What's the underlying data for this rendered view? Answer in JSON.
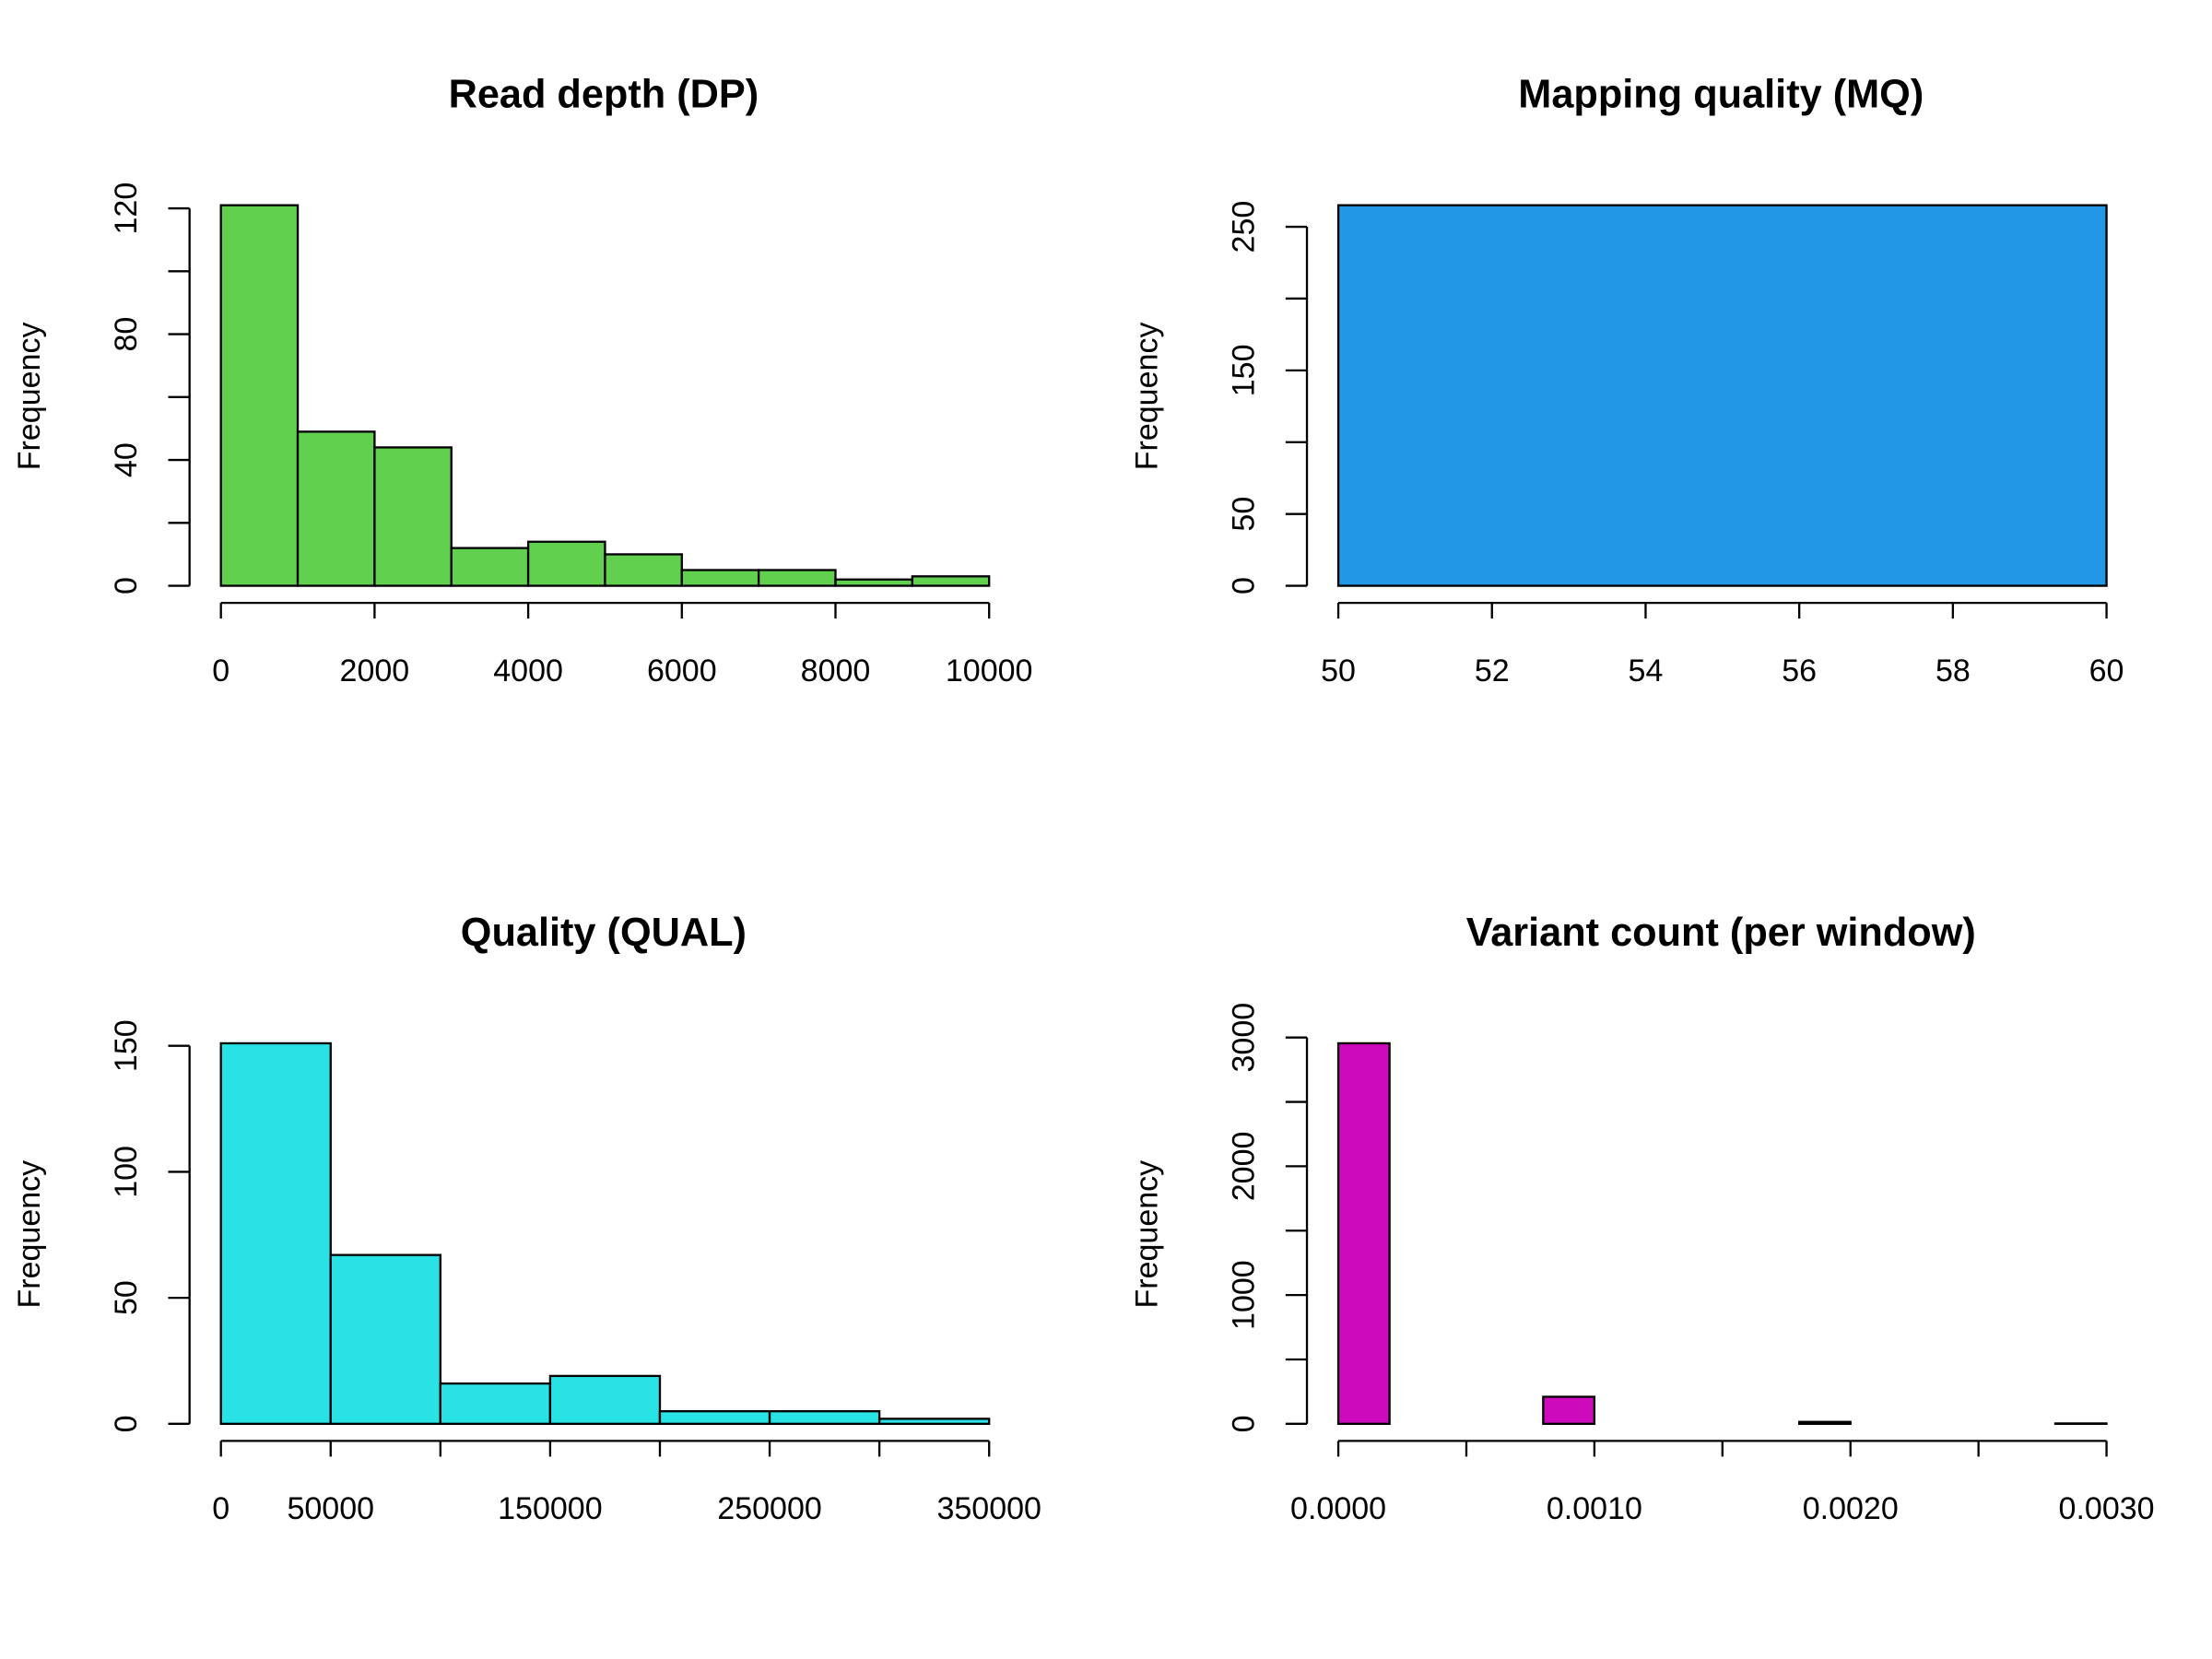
{
  "chart_data": [
    {
      "type": "histogram",
      "title": "Read depth (DP)",
      "ylabel": "Frequency",
      "color": "#61d04f",
      "bins": [
        0,
        1000,
        2000,
        3000,
        4000,
        5000,
        6000,
        7000,
        8000,
        9000,
        10000
      ],
      "counts": [
        121,
        49,
        44,
        12,
        14,
        10,
        5,
        5,
        2,
        3
      ],
      "xlim": [
        0,
        10000
      ],
      "xticks": [
        0,
        2000,
        4000,
        6000,
        8000,
        10000
      ],
      "xminorticks": [],
      "ylim": [
        0,
        121
      ],
      "yticks": [
        0,
        40,
        80,
        120
      ],
      "yminorticks": [
        20,
        60,
        100
      ]
    },
    {
      "type": "histogram",
      "title": "Mapping quality (MQ)",
      "ylabel": "Frequency",
      "color": "#2297e6",
      "bins": [
        50,
        60
      ],
      "counts": [
        265
      ],
      "xlim": [
        50,
        60
      ],
      "xticks": [
        50,
        52,
        54,
        56,
        58,
        60
      ],
      "xminorticks": [],
      "ylim": [
        0,
        265
      ],
      "yticks": [
        0,
        50,
        150,
        250
      ],
      "yminorticks": [
        100,
        200
      ]
    },
    {
      "type": "histogram",
      "title": "Quality (QUAL)",
      "ylabel": "Frequency",
      "color": "#28e2e5",
      "bins": [
        0,
        50000,
        100000,
        150000,
        200000,
        250000,
        300000,
        350000
      ],
      "counts": [
        151,
        67,
        16,
        19,
        5,
        5,
        2
      ],
      "xlim": [
        0,
        350000
      ],
      "xticks": [
        0,
        50000,
        150000,
        250000,
        350000
      ],
      "xminorticks": [
        100000,
        200000,
        300000
      ],
      "ylim": [
        0,
        151
      ],
      "yticks": [
        0,
        50,
        100,
        150
      ],
      "yminorticks": []
    },
    {
      "type": "histogram",
      "title": "Variant count (per window)",
      "ylabel": "Frequency",
      "color": "#cd0bbc",
      "bins": [
        0,
        0.0002,
        0.0004,
        0.0006,
        0.0008,
        0.001,
        0.0012,
        0.0014,
        0.0016,
        0.0018,
        0.002,
        0.0022,
        0.0024,
        0.0026,
        0.0028,
        0.003
      ],
      "counts": [
        2955,
        0,
        0,
        0,
        210,
        0,
        0,
        0,
        0,
        15,
        0,
        0,
        0,
        0,
        3
      ],
      "xlim": [
        0,
        0.003
      ],
      "xticks": [
        {
          "value": 0,
          "label": "0.0000"
        },
        {
          "value": 0.001,
          "label": "0.0010"
        },
        {
          "value": 0.002,
          "label": "0.0020"
        },
        {
          "value": 0.003,
          "label": "0.0030"
        }
      ],
      "xminorticks": [
        0.0005,
        0.0015,
        0.0025
      ],
      "ylim": [
        0,
        2955
      ],
      "yticks": [
        0,
        1000,
        2000,
        3000
      ],
      "yminorticks": [
        500,
        1500,
        2500
      ]
    }
  ]
}
